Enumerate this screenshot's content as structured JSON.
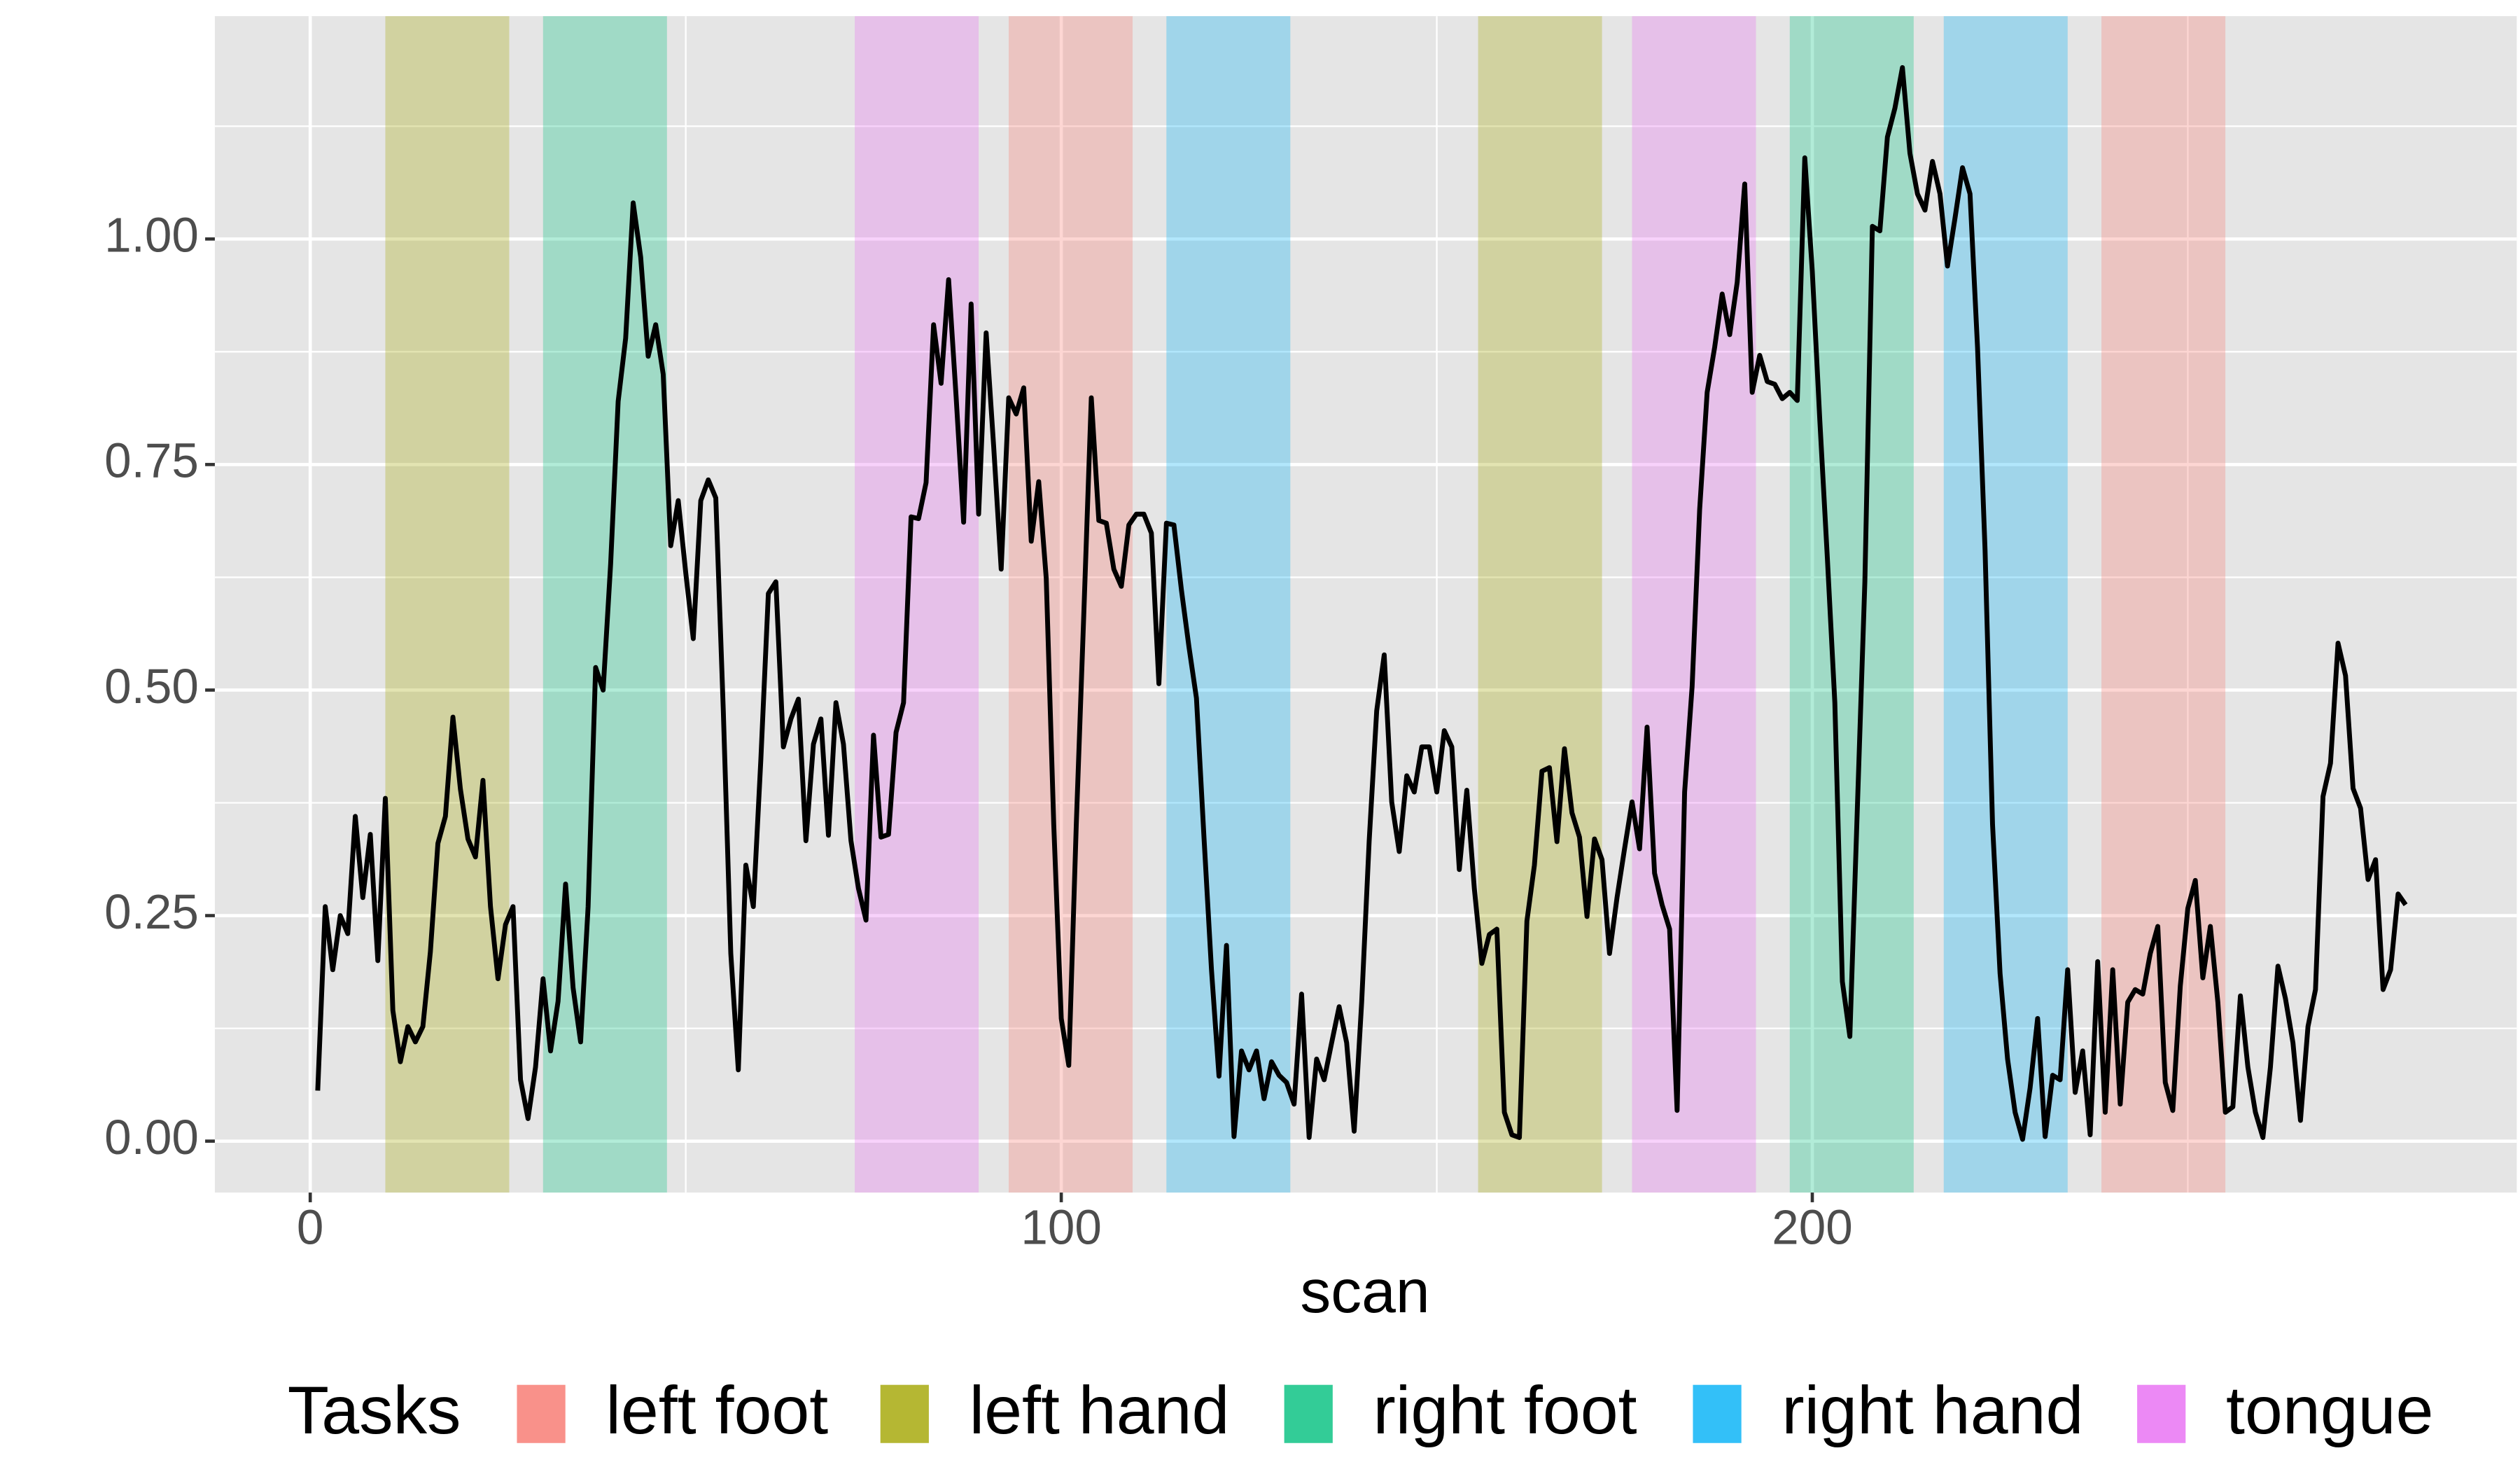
{
  "chart_data": {
    "type": "line",
    "x_label": "scan",
    "legend_title": "Tasks",
    "xlim": [
      -12.7,
      293.8
    ],
    "ylim": [
      -0.057,
      1.247
    ],
    "xticks": [
      0,
      100,
      200
    ],
    "yticks": [
      {
        "value": 0,
        "label": "0.00"
      },
      {
        "value": 0.25,
        "label": "0.25"
      },
      {
        "value": 0.5,
        "label": "0.50"
      },
      {
        "value": 0.75,
        "label": "0.75"
      },
      {
        "value": 1,
        "label": "1.00"
      }
    ],
    "x_minor_grid": [
      50,
      150,
      250
    ],
    "y_minor_grid": [
      0.125,
      0.375,
      0.625,
      0.875,
      1.125
    ],
    "grid": true,
    "legend_position": "bottom",
    "series": [
      {
        "name": "left foot",
        "color": "#F8766D",
        "ranges": [
          [
            93,
            109.5
          ],
          [
            238.5,
            255
          ]
        ]
      },
      {
        "name": "left hand",
        "color": "#A3A500",
        "ranges": [
          [
            10,
            26.5
          ],
          [
            155.5,
            172
          ]
        ]
      },
      {
        "name": "right foot",
        "color": "#00BF7D",
        "ranges": [
          [
            31,
            47.5
          ],
          [
            197,
            213.5
          ]
        ]
      },
      {
        "name": "right hand",
        "color": "#00B0F6",
        "ranges": [
          [
            114,
            130.5
          ],
          [
            217.5,
            234
          ]
        ]
      },
      {
        "name": "tongue",
        "color": "#E76BF3",
        "ranges": [
          [
            72.5,
            89
          ],
          [
            176,
            192.5
          ]
        ]
      }
    ],
    "line": {
      "color": "#000000",
      "x": [
        1,
        2,
        3,
        4,
        5,
        6,
        7,
        8,
        9,
        10,
        11,
        12,
        13,
        14,
        15,
        16,
        17,
        18,
        19,
        20,
        21,
        22,
        23,
        24,
        25,
        26,
        27,
        28,
        29,
        30,
        31,
        32,
        33,
        34,
        35,
        36,
        37,
        38,
        39,
        40,
        41,
        42,
        43,
        44,
        45,
        46,
        47,
        48,
        49,
        50,
        51,
        52,
        53,
        54,
        55,
        56,
        57,
        58,
        59,
        60,
        61,
        62,
        63,
        64,
        65,
        66,
        67,
        68,
        69,
        70,
        71,
        72,
        73,
        74,
        75,
        76,
        77,
        78,
        79,
        80,
        81,
        82,
        83,
        84,
        85,
        86,
        87,
        88,
        89,
        90,
        91,
        92,
        93,
        94,
        95,
        96,
        97,
        98,
        99,
        100,
        101,
        102,
        103,
        104,
        105,
        106,
        107,
        108,
        109,
        110,
        111,
        112,
        113,
        114,
        115,
        116,
        117,
        118,
        119,
        120,
        121,
        122,
        123,
        124,
        125,
        126,
        127,
        128,
        129,
        130,
        131,
        132,
        133,
        134,
        135,
        136,
        137,
        138,
        139,
        140,
        141,
        142,
        143,
        144,
        145,
        146,
        147,
        148,
        149,
        150,
        151,
        152,
        153,
        154,
        155,
        156,
        157,
        158,
        159,
        160,
        161,
        162,
        163,
        164,
        165,
        166,
        167,
        168,
        169,
        170,
        171,
        172,
        173,
        174,
        175,
        176,
        177,
        178,
        179,
        180,
        181,
        182,
        183,
        184,
        185,
        186,
        187,
        188,
        189,
        190,
        191,
        192,
        193,
        194,
        195,
        196,
        197,
        198,
        199,
        200,
        201,
        202,
        203,
        204,
        205,
        206,
        207,
        208,
        209,
        210,
        211,
        212,
        213,
        214,
        215,
        216,
        217,
        218,
        219,
        220,
        221,
        222,
        223,
        224,
        225,
        226,
        227,
        228,
        229,
        230,
        231,
        232,
        233,
        234,
        235,
        236,
        237,
        238,
        239,
        240,
        241,
        242,
        243,
        244,
        245,
        246,
        247,
        248,
        249,
        250,
        251,
        252,
        253,
        254,
        255,
        256,
        257,
        258,
        259,
        260,
        261,
        262,
        263,
        264,
        265,
        266,
        267,
        268,
        269,
        270,
        271,
        272,
        273,
        274,
        275,
        276,
        277,
        278,
        279
      ],
      "values": [
        0.056,
        0.26,
        0.19,
        0.25,
        0.23,
        0.36,
        0.27,
        0.34,
        0.2,
        0.38,
        0.145,
        0.088,
        0.127,
        0.11,
        0.127,
        0.21,
        0.33,
        0.36,
        0.47,
        0.39,
        0.335,
        0.315,
        0.4,
        0.26,
        0.18,
        0.24,
        0.26,
        0.068,
        0.025,
        0.082,
        0.18,
        0.1,
        0.155,
        0.285,
        0.17,
        0.11,
        0.26,
        0.525,
        0.5,
        0.64,
        0.82,
        0.89,
        1.04,
        0.98,
        0.87,
        0.905,
        0.85,
        0.66,
        0.71,
        0.63,
        0.557,
        0.71,
        0.733,
        0.713,
        0.477,
        0.208,
        0.079,
        0.306,
        0.26,
        0.423,
        0.607,
        0.62,
        0.437,
        0.468,
        0.49,
        0.333,
        0.44,
        0.468,
        0.339,
        0.486,
        0.44,
        0.333,
        0.28,
        0.245,
        0.45,
        0.337,
        0.34,
        0.453,
        0.486,
        0.692,
        0.69,
        0.73,
        0.905,
        0.84,
        0.955,
        0.825,
        0.686,
        0.928,
        0.695,
        0.896,
        0.77,
        0.634,
        0.824,
        0.806,
        0.835,
        0.665,
        0.731,
        0.624,
        0.351,
        0.136,
        0.084,
        0.351,
        0.584,
        0.824,
        0.688,
        0.685,
        0.634,
        0.615,
        0.683,
        0.695,
        0.695,
        0.674,
        0.507,
        0.685,
        0.683,
        0.611,
        0.548,
        0.491,
        0.337,
        0.19,
        0.072,
        0.217,
        0.005,
        0.1,
        0.079,
        0.1,
        0.047,
        0.088,
        0.073,
        0.065,
        0.041,
        0.163,
        0.004,
        0.091,
        0.068,
        0.109,
        0.149,
        0.109,
        0.011,
        0.154,
        0.333,
        0.477,
        0.539,
        0.376,
        0.321,
        0.405,
        0.387,
        0.437,
        0.437,
        0.387,
        0.455,
        0.437,
        0.301,
        0.389,
        0.28,
        0.197,
        0.229,
        0.235,
        0.032,
        0.007,
        0.004,
        0.244,
        0.306,
        0.41,
        0.414,
        0.332,
        0.435,
        0.364,
        0.337,
        0.249,
        0.335,
        0.312,
        0.208,
        0.27,
        0.324,
        0.376,
        0.324,
        0.459,
        0.297,
        0.262,
        0.235,
        0.034,
        0.387,
        0.504,
        0.7,
        0.83,
        0.88,
        0.939,
        0.894,
        0.952,
        1.061,
        0.83,
        0.871,
        0.842,
        0.839,
        0.823,
        0.83,
        0.821,
        1.09,
        0.964,
        0.799,
        0.647,
        0.486,
        0.177,
        0.116,
        0.369,
        0.62,
        1.014,
        1.009,
        1.113,
        1.145,
        1.19,
        1.095,
        1.05,
        1.032,
        1.086,
        1.05,
        0.97,
        1.023,
        1.079,
        1.05,
        0.88,
        0.656,
        0.351,
        0.186,
        0.091,
        0.032,
        0.002,
        0.059,
        0.136,
        0.005,
        0.073,
        0.068,
        0.19,
        0.054,
        0.1,
        0.007,
        0.199,
        0.032,
        0.19,
        0.041,
        0.154,
        0.168,
        0.163,
        0.208,
        0.238,
        0.065,
        0.034,
        0.172,
        0.258,
        0.289,
        0.181,
        0.238,
        0.154,
        0.032,
        0.038,
        0.161,
        0.082,
        0.032,
        0.004,
        0.082,
        0.194,
        0.158,
        0.109,
        0.023,
        0.127,
        0.168,
        0.382,
        0.419,
        0.552,
        0.516,
        0.391,
        0.369,
        0.29,
        0.312,
        0.168,
        0.19,
        0.274,
        0.262
      ]
    }
  }
}
